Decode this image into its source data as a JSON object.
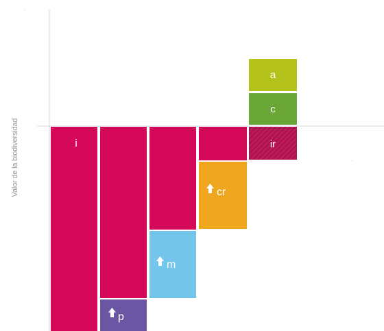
{
  "y_axis_title": "Valor de la biodiversidad",
  "colors": {
    "magenta": "#d4095a",
    "orange": "#eea71e",
    "light_blue": "#73c6ea",
    "purple": "#6a56a3",
    "green": "#6aa636",
    "yellow_green": "#b5c21c",
    "hatch_dark": "#9a1b4a",
    "axis": "#d9d9d9",
    "label": "#ffffff"
  },
  "blocks": [
    {
      "id": "i",
      "label": "i",
      "icon": "",
      "color": "magenta"
    },
    {
      "id": "col2",
      "label": "",
      "icon": "",
      "color": "magenta"
    },
    {
      "id": "col3",
      "label": "",
      "icon": "",
      "color": "magenta"
    },
    {
      "id": "col4",
      "label": "",
      "icon": "",
      "color": "magenta"
    },
    {
      "id": "p",
      "label": "p",
      "icon": "up-arrow-icon",
      "color": "purple"
    },
    {
      "id": "m",
      "label": "m",
      "icon": "up-arrow-icon",
      "color": "light_blue"
    },
    {
      "id": "cr",
      "label": "cr",
      "icon": "up-arrow-icon",
      "color": "orange"
    },
    {
      "id": "ir",
      "label": "ir",
      "icon": "",
      "color": "hatch"
    },
    {
      "id": "c",
      "label": "c",
      "icon": "",
      "color": "green"
    },
    {
      "id": "a",
      "label": "a",
      "icon": "",
      "color": "yellow_green"
    }
  ]
}
